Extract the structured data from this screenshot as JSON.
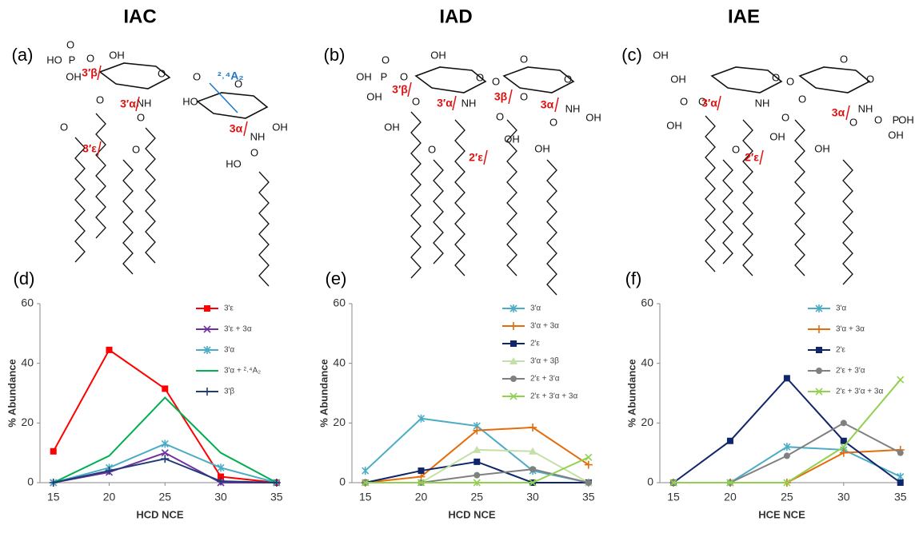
{
  "figure": {
    "structures": [
      {
        "title": "IAC",
        "panel": "(a)",
        "atom_labels": [
          "O",
          "HO",
          "P",
          "O",
          "OH",
          "OH",
          "O",
          "O",
          "NH",
          "O",
          "O",
          "O",
          "O",
          "HO",
          "O",
          "OH",
          "NH",
          "O",
          "HO"
        ],
        "cleavage_labels": [
          "3′β",
          "3′α",
          "3α",
          "3′ε"
        ],
        "cross_ring_labels": [
          "²˒⁴A₂"
        ]
      },
      {
        "title": "IAD",
        "panel": "(b)",
        "atom_labels": [
          "O",
          "OH",
          "P",
          "O",
          "OH",
          "OH",
          "O",
          "O",
          "O",
          "NH",
          "O",
          "OH",
          "O",
          "O",
          "O",
          "NH",
          "OH",
          "O",
          "OH",
          "OH",
          "O"
        ],
        "cleavage_labels": [
          "3′β",
          "3′α",
          "3β",
          "2′ε",
          "3α"
        ]
      },
      {
        "title": "IAE",
        "panel": "(c)",
        "atom_labels": [
          "OH",
          "OH",
          "O",
          "O",
          "O",
          "O",
          "NH",
          "O",
          "OH",
          "O",
          "O",
          "O",
          "NH",
          "O",
          "O",
          "P",
          "OH",
          "OH",
          "OH",
          "OH",
          "O"
        ],
        "cleavage_labels": [
          "3′α",
          "2′ε",
          "3α"
        ]
      }
    ]
  },
  "chart_data": [
    {
      "type": "line",
      "panel": "(d)",
      "x_label": "HCD NCE",
      "y_label": "% Abundance",
      "x": [
        15,
        20,
        25,
        30,
        35
      ],
      "xlim": [
        13.8,
        35.3
      ],
      "xticks": [
        15,
        20,
        25,
        30,
        35
      ],
      "ylim": [
        0,
        60
      ],
      "yticks": [
        0,
        20,
        40,
        60
      ],
      "legend": "upper right",
      "series": [
        {
          "name": "3′ε",
          "color": "#ff0000",
          "marker": "square",
          "values": [
            10.5,
            44.5,
            31.5,
            2,
            0
          ]
        },
        {
          "name": "3′ε + 3α",
          "color": "#7030a0",
          "marker": "x",
          "values": [
            0,
            3.5,
            10,
            0,
            0
          ]
        },
        {
          "name": "3′α",
          "color": "#4bacc6",
          "marker": "asterisk",
          "values": [
            0,
            5,
            13,
            5,
            0
          ]
        },
        {
          "name": "3′α + ²˒⁴A₂",
          "color": "#00b050",
          "marker": "none",
          "values": [
            0,
            9,
            28.5,
            10,
            0
          ]
        },
        {
          "name": "3′β",
          "color": "#1f3c78",
          "marker": "plus",
          "values": [
            0,
            4,
            8,
            0.5,
            0
          ]
        }
      ]
    },
    {
      "type": "line",
      "panel": "(e)",
      "x_label": "HCD NCE",
      "y_label": "% Abundance",
      "x": [
        15,
        20,
        25,
        30,
        35
      ],
      "xlim": [
        13.8,
        35.3
      ],
      "xticks": [
        15,
        20,
        25,
        30,
        35
      ],
      "ylim": [
        0,
        60
      ],
      "yticks": [
        0,
        20,
        40,
        60
      ],
      "legend": "upper right",
      "series": [
        {
          "name": "3′α",
          "color": "#4bacc6",
          "marker": "asterisk",
          "values": [
            4,
            21.5,
            19,
            4,
            0
          ]
        },
        {
          "name": "3′α + 3α",
          "color": "#e46c0a",
          "marker": "plus",
          "values": [
            0,
            2,
            17.5,
            18.5,
            6
          ]
        },
        {
          "name": "2′ε",
          "color": "#10266b",
          "marker": "square",
          "values": [
            0,
            4,
            7,
            0,
            0
          ]
        },
        {
          "name": "3′α + 3β",
          "color": "#c4dfa8",
          "marker": "triangle",
          "values": [
            0,
            0,
            11,
            10.5,
            0
          ]
        },
        {
          "name": "2′ε + 3′α",
          "color": "#808080",
          "marker": "circle",
          "values": [
            0,
            0,
            2.5,
            4.5,
            0
          ]
        },
        {
          "name": "2′ε + 3′α + 3α",
          "color": "#92d050",
          "marker": "x",
          "values": [
            0,
            0,
            0,
            0,
            8.5
          ]
        }
      ]
    },
    {
      "type": "line",
      "panel": "(f)",
      "x_label": "HCE NCE",
      "y_label": "% Abundance",
      "x": [
        15,
        20,
        25,
        30,
        35
      ],
      "xlim": [
        13.8,
        35.3
      ],
      "xticks": [
        15,
        20,
        25,
        30,
        35
      ],
      "ylim": [
        0,
        60
      ],
      "yticks": [
        0,
        20,
        40,
        60
      ],
      "legend": "upper right",
      "series": [
        {
          "name": "3′α",
          "color": "#4bacc6",
          "marker": "asterisk",
          "values": [
            0,
            0,
            12,
            11,
            2
          ]
        },
        {
          "name": "3′α + 3α",
          "color": "#e46c0a",
          "marker": "plus",
          "values": [
            0,
            0,
            0,
            10,
            11
          ]
        },
        {
          "name": "2′ε",
          "color": "#10266b",
          "marker": "square",
          "values": [
            0,
            14,
            35,
            14,
            0
          ]
        },
        {
          "name": "2′ε + 3′α",
          "color": "#808080",
          "marker": "circle",
          "values": [
            0,
            0,
            9,
            20,
            10
          ]
        },
        {
          "name": "2′ε + 3′α + 3α",
          "color": "#92d050",
          "marker": "x",
          "values": [
            0,
            0,
            0,
            12,
            34.5
          ]
        }
      ]
    }
  ]
}
